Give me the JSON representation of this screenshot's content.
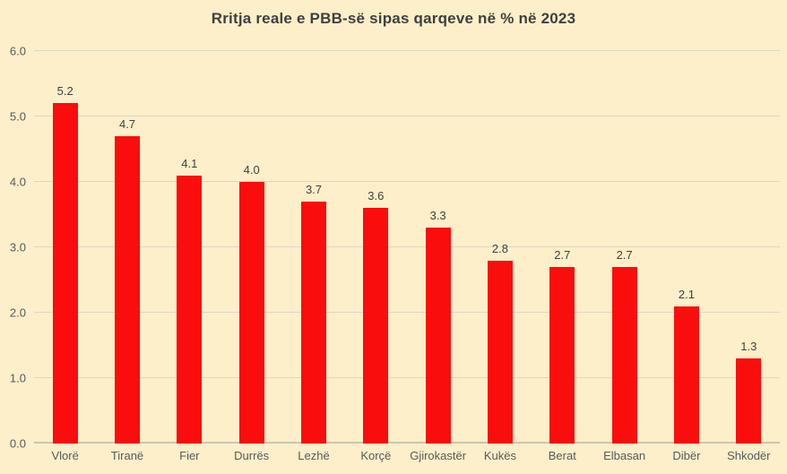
{
  "chart_data": {
    "type": "bar",
    "title": "Rritja reale e PBB-së sipas qarqeve në % në 2023",
    "categories": [
      "Vlorë",
      "Tiranë",
      "Fier",
      "Durrës",
      "Lezhë",
      "Korçë",
      "Gjirokastër",
      "Kukës",
      "Berat",
      "Elbasan",
      "Dibër",
      "Shkodër"
    ],
    "values": [
      5.2,
      4.7,
      4.1,
      4.0,
      3.7,
      3.6,
      3.3,
      2.8,
      2.7,
      2.7,
      2.1,
      1.3
    ],
    "value_labels": [
      "5.2",
      "4.7",
      "4.1",
      "4.0",
      "3.7",
      "3.6",
      "3.3",
      "2.8",
      "2.7",
      "2.7",
      "2.1",
      "1.3"
    ],
    "xlabel": "",
    "ylabel": "",
    "ylim": [
      0,
      6
    ],
    "ytick_step": 1.0,
    "ytick_labels": [
      "0.0",
      "1.0",
      "2.0",
      "3.0",
      "4.0",
      "5.0",
      "6.0"
    ],
    "grid": true,
    "legend": false
  },
  "colors": {
    "background": "#fcefc9",
    "bar": "#f90d0d",
    "title_text": "#3f3f3f",
    "axis_text": "#595959",
    "value_label_text": "#404040",
    "gridline": "#ddd6c1",
    "axis_line": "#cdc5af"
  }
}
